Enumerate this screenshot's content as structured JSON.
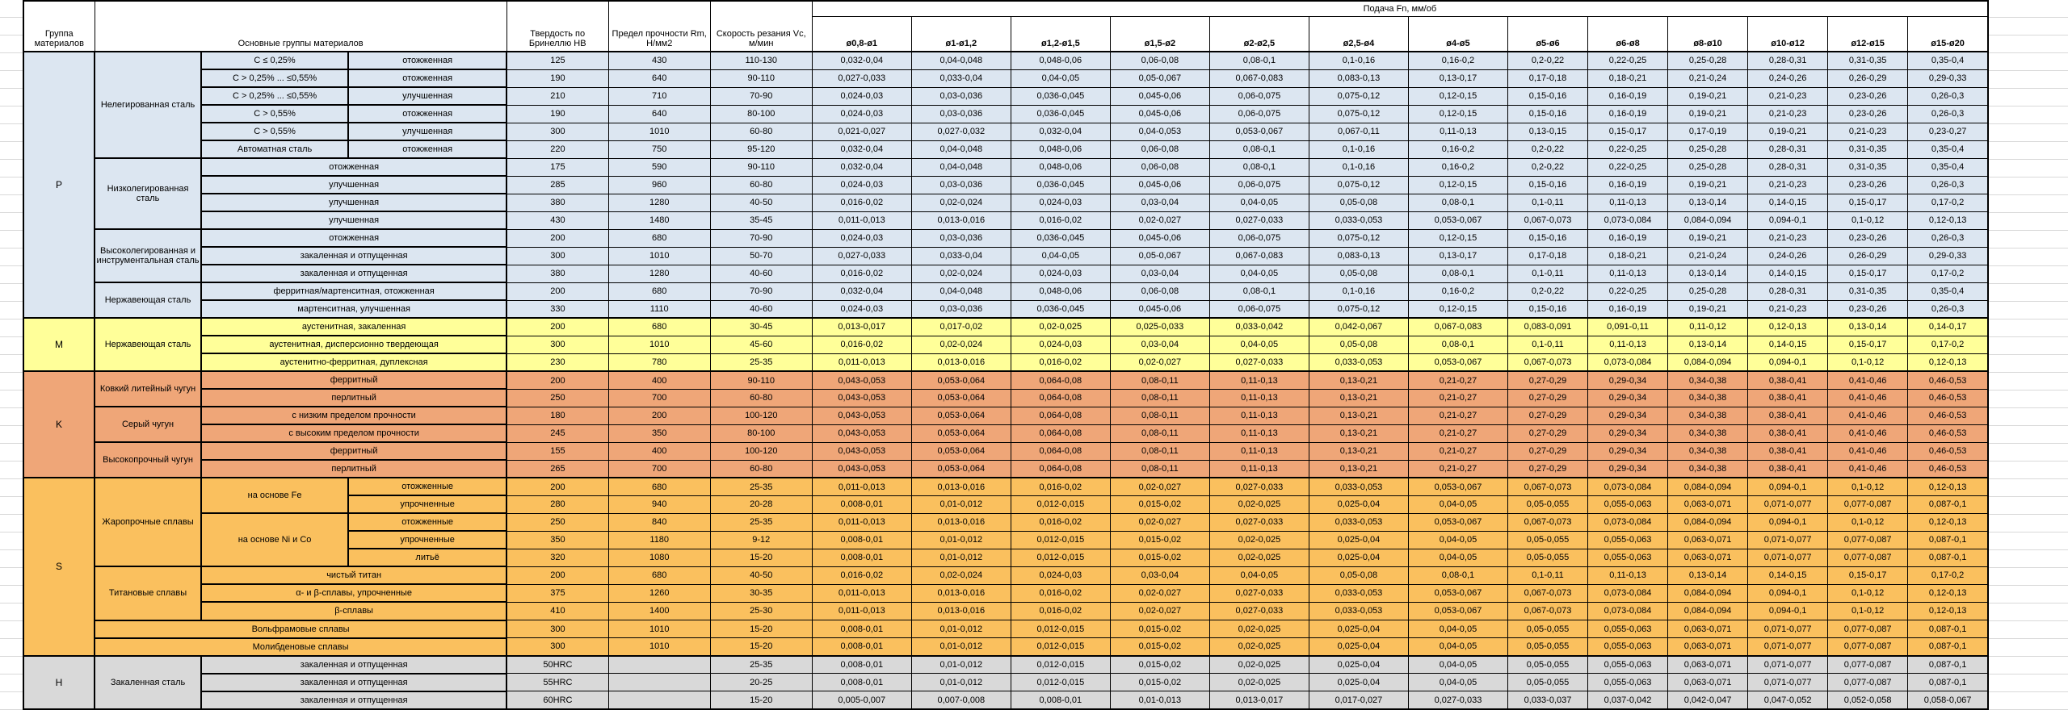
{
  "header": {
    "group": "Группа материалов",
    "main_groups": "Основные группы материалов",
    "hardness": "Твердость по Бринеллю HB",
    "strength": "Предел прочности Rm, Н/мм2",
    "speed": "Скорость резания Vc, м/мин",
    "feed": "Подача Fn, мм/об",
    "feed_sizes": [
      "ø0,8-ø1",
      "ø1-ø1,2",
      "ø1,2-ø1,5",
      "ø1,5-ø2",
      "ø2-ø2,5",
      "ø2,5-ø4",
      "ø4-ø5",
      "ø5-ø6",
      "ø6-ø8",
      "ø8-ø10",
      "ø10-ø12",
      "ø12-ø15",
      "ø15-ø20"
    ]
  },
  "feed_patterns": {
    "A": [
      "0,032-0,04",
      "0,04-0,048",
      "0,048-0,06",
      "0,06-0,08",
      "0,08-0,1",
      "0,1-0,16",
      "0,16-0,2",
      "0,2-0,22",
      "0,22-0,25",
      "0,25-0,28",
      "0,28-0,31",
      "0,31-0,35",
      "0,35-0,4"
    ],
    "B": [
      "0,027-0,033",
      "0,033-0,04",
      "0,04-0,05",
      "0,05-0,067",
      "0,067-0,083",
      "0,083-0,13",
      "0,13-0,17",
      "0,17-0,18",
      "0,18-0,21",
      "0,21-0,24",
      "0,24-0,26",
      "0,26-0,29",
      "0,29-0,33"
    ],
    "C": [
      "0,024-0,03",
      "0,03-0,036",
      "0,036-0,045",
      "0,045-0,06",
      "0,06-0,075",
      "0,075-0,12",
      "0,12-0,15",
      "0,15-0,16",
      "0,16-0,19",
      "0,19-0,21",
      "0,21-0,23",
      "0,23-0,26",
      "0,26-0,3"
    ],
    "D": [
      "0,021-0,027",
      "0,027-0,032",
      "0,032-0,04",
      "0,04-0,053",
      "0,053-0,067",
      "0,067-0,11",
      "0,11-0,13",
      "0,13-0,15",
      "0,15-0,17",
      "0,17-0,19",
      "0,19-0,21",
      "0,21-0,23",
      "0,23-0,27"
    ],
    "E": [
      "0,016-0,02",
      "0,02-0,024",
      "0,024-0,03",
      "0,03-0,04",
      "0,04-0,05",
      "0,05-0,08",
      "0,08-0,1",
      "0,1-0,11",
      "0,11-0,13",
      "0,13-0,14",
      "0,14-0,15",
      "0,15-0,17",
      "0,17-0,2"
    ],
    "F": [
      "0,011-0,013",
      "0,013-0,016",
      "0,016-0,02",
      "0,02-0,027",
      "0,027-0,033",
      "0,033-0,053",
      "0,053-0,067",
      "0,067-0,073",
      "0,073-0,084",
      "0,084-0,094",
      "0,094-0,1",
      "0,1-0,12",
      "0,12-0,13"
    ],
    "G": [
      "0,008-0,01",
      "0,01-0,012",
      "0,012-0,015",
      "0,015-0,02",
      "0,02-0,025",
      "0,025-0,04",
      "0,04-0,05",
      "0,05-0,055",
      "0,055-0,063",
      "0,063-0,071",
      "0,071-0,077",
      "0,077-0,087",
      "0,087-0,1"
    ],
    "M1": [
      "0,013-0,017",
      "0,017-0,02",
      "0,02-0,025",
      "0,025-0,033",
      "0,033-0,042",
      "0,042-0,067",
      "0,067-0,083",
      "0,083-0,091",
      "0,091-0,11",
      "0,11-0,12",
      "0,12-0,13",
      "0,13-0,14",
      "0,14-0,17"
    ],
    "K1": [
      "0,043-0,053",
      "0,053-0,064",
      "0,064-0,08",
      "0,08-0,11",
      "0,11-0,13",
      "0,13-0,21",
      "0,21-0,27",
      "0,27-0,29",
      "0,29-0,34",
      "0,34-0,38",
      "0,38-0,41",
      "0,41-0,46",
      "0,46-0,53"
    ],
    "H60": [
      "0,005-0,007",
      "0,007-0,008",
      "0,008-0,01",
      "0,01-0,013",
      "0,013-0,017",
      "0,017-0,027",
      "0,027-0,033",
      "0,033-0,037",
      "0,037-0,042",
      "0,042-0,047",
      "0,047-0,052",
      "0,052-0,058",
      "0,058-0,067"
    ]
  },
  "sections": [
    {
      "code": "P",
      "color": "#dce6f1",
      "rows": [
        {
          "labels": [
            {
              "t": "Нелегированная сталь",
              "rs": 6
            },
            {
              "t": "C ≤ 0,25%"
            },
            {
              "t": "отожженная"
            }
          ],
          "hb": "125",
          "rm": "430",
          "vc": "110-130",
          "feeds": "A"
        },
        {
          "labels": [
            {
              "t": "C > 0,25% ... ≤0,55%"
            },
            {
              "t": "отожженная"
            }
          ],
          "hb": "190",
          "rm": "640",
          "vc": "90-110",
          "feeds": "B"
        },
        {
          "labels": [
            {
              "t": "C > 0,25% ... ≤0,55%"
            },
            {
              "t": "улучшенная"
            }
          ],
          "hb": "210",
          "rm": "710",
          "vc": "70-90",
          "feeds": "C"
        },
        {
          "labels": [
            {
              "t": "C > 0,55%"
            },
            {
              "t": "отожженная"
            }
          ],
          "hb": "190",
          "rm": "640",
          "vc": "80-100",
          "feeds": "C"
        },
        {
          "labels": [
            {
              "t": "C > 0,55%"
            },
            {
              "t": "улучшенная"
            }
          ],
          "hb": "300",
          "rm": "1010",
          "vc": "60-80",
          "feeds": "D"
        },
        {
          "labels": [
            {
              "t": "Автоматная сталь"
            },
            {
              "t": "отожженная"
            }
          ],
          "hb": "220",
          "rm": "750",
          "vc": "95-120",
          "feeds": "A"
        },
        {
          "labels": [
            {
              "t": "Низколегированная сталь",
              "rs": 4
            },
            {
              "t": "отожженная",
              "cs": 2
            }
          ],
          "hb": "175",
          "rm": "590",
          "vc": "90-110",
          "feeds": "A"
        },
        {
          "labels": [
            {
              "t": "улучшенная",
              "cs": 2
            }
          ],
          "hb": "285",
          "rm": "960",
          "vc": "60-80",
          "feeds": "C"
        },
        {
          "labels": [
            {
              "t": "улучшенная",
              "cs": 2
            }
          ],
          "hb": "380",
          "rm": "1280",
          "vc": "40-50",
          "feeds": "E"
        },
        {
          "labels": [
            {
              "t": "улучшенная",
              "cs": 2
            }
          ],
          "hb": "430",
          "rm": "1480",
          "vc": "35-45",
          "feeds": "F"
        },
        {
          "labels": [
            {
              "t": "Высоколегированная и инструментальная сталь",
              "rs": 3
            },
            {
              "t": "отожженная",
              "cs": 2
            }
          ],
          "hb": "200",
          "rm": "680",
          "vc": "70-90",
          "feeds": "C"
        },
        {
          "labels": [
            {
              "t": "закаленная и отпущенная",
              "cs": 2
            }
          ],
          "hb": "300",
          "rm": "1010",
          "vc": "50-70",
          "feeds": "B"
        },
        {
          "labels": [
            {
              "t": "закаленная и отпущенная",
              "cs": 2
            }
          ],
          "hb": "380",
          "rm": "1280",
          "vc": "40-60",
          "feeds": "E"
        },
        {
          "labels": [
            {
              "t": "Нержавеющая сталь",
              "rs": 2
            },
            {
              "t": "ферритная/мартенситная, отожженная",
              "cs": 2
            }
          ],
          "hb": "200",
          "rm": "680",
          "vc": "70-90",
          "feeds": "A"
        },
        {
          "labels": [
            {
              "t": "мартенситная, улучшенная",
              "cs": 2
            }
          ],
          "hb": "330",
          "rm": "1110",
          "vc": "40-60",
          "feeds": "C"
        }
      ]
    },
    {
      "code": "M",
      "color": "#ffff99",
      "rows": [
        {
          "labels": [
            {
              "t": "Нержавеющая сталь",
              "rs": 3
            },
            {
              "t": "аустенитная, закаленная",
              "cs": 2
            }
          ],
          "hb": "200",
          "rm": "680",
          "vc": "30-45",
          "feeds": "M1"
        },
        {
          "labels": [
            {
              "t": "аустенитная, дисперсионно твердеющая",
              "cs": 2
            }
          ],
          "hb": "300",
          "rm": "1010",
          "vc": "45-60",
          "feeds": "E"
        },
        {
          "labels": [
            {
              "t": "аустенитно-ферритная, дуплексная",
              "cs": 2
            }
          ],
          "hb": "230",
          "rm": "780",
          "vc": "25-35",
          "feeds": "F"
        }
      ]
    },
    {
      "code": "K",
      "color": "#efa678",
      "rows": [
        {
          "labels": [
            {
              "t": "Ковкий литейный чугун",
              "rs": 2
            },
            {
              "t": "ферритный",
              "cs": 2
            }
          ],
          "hb": "200",
          "rm": "400",
          "vc": "90-110",
          "feeds": "K1"
        },
        {
          "labels": [
            {
              "t": "перлитный",
              "cs": 2
            }
          ],
          "hb": "250",
          "rm": "700",
          "vc": "60-80",
          "feeds": "K1"
        },
        {
          "labels": [
            {
              "t": "Серый чугун",
              "rs": 2
            },
            {
              "t": "с низким пределом прочности",
              "cs": 2
            }
          ],
          "hb": "180",
          "rm": "200",
          "vc": "100-120",
          "feeds": "K1"
        },
        {
          "labels": [
            {
              "t": "с высоким пределом прочности",
              "cs": 2
            }
          ],
          "hb": "245",
          "rm": "350",
          "vc": "80-100",
          "feeds": "K1"
        },
        {
          "labels": [
            {
              "t": "Высокопрочный чугун",
              "rs": 2
            },
            {
              "t": "ферритный",
              "cs": 2
            }
          ],
          "hb": "155",
          "rm": "400",
          "vc": "100-120",
          "feeds": "K1"
        },
        {
          "labels": [
            {
              "t": "перлитный",
              "cs": 2
            }
          ],
          "hb": "265",
          "rm": "700",
          "vc": "60-80",
          "feeds": "K1"
        }
      ]
    },
    {
      "code": "S",
      "color": "#fac05e",
      "rows": [
        {
          "labels": [
            {
              "t": "Жаропрочные сплавы",
              "rs": 5
            },
            {
              "t": "на основе Fe",
              "rs": 2
            },
            {
              "t": "отожженные"
            }
          ],
          "hb": "200",
          "rm": "680",
          "vc": "25-35",
          "feeds": "F"
        },
        {
          "labels": [
            {
              "t": "упрочненные"
            }
          ],
          "hb": "280",
          "rm": "940",
          "vc": "20-28",
          "feeds": "G"
        },
        {
          "labels": [
            {
              "t": "на основе Ni и Co",
              "rs": 3
            },
            {
              "t": "отожженные"
            }
          ],
          "hb": "250",
          "rm": "840",
          "vc": "25-35",
          "feeds": "F"
        },
        {
          "labels": [
            {
              "t": "упрочненные"
            }
          ],
          "hb": "350",
          "rm": "1180",
          "vc": "9-12",
          "feeds": "G"
        },
        {
          "labels": [
            {
              "t": "литьё"
            }
          ],
          "hb": "320",
          "rm": "1080",
          "vc": "15-20",
          "feeds": "G"
        },
        {
          "labels": [
            {
              "t": "Титановые сплавы",
              "rs": 3
            },
            {
              "t": "чистый титан",
              "cs": 2
            }
          ],
          "hb": "200",
          "rm": "680",
          "vc": "40-50",
          "feeds": "E"
        },
        {
          "labels": [
            {
              "t": "α- и β-сплавы, упрочненные",
              "cs": 2
            }
          ],
          "hb": "375",
          "rm": "1260",
          "vc": "30-35",
          "feeds": "F"
        },
        {
          "labels": [
            {
              "t": "β-сплавы",
              "cs": 2
            }
          ],
          "hb": "410",
          "rm": "1400",
          "vc": "25-30",
          "feeds": "F"
        },
        {
          "labels": [
            {
              "t": "Вольфрамовые сплавы",
              "cs": 3
            }
          ],
          "hb": "300",
          "rm": "1010",
          "vc": "15-20",
          "feeds": "G"
        },
        {
          "labels": [
            {
              "t": "Молибденовые сплавы",
              "cs": 3
            }
          ],
          "hb": "300",
          "rm": "1010",
          "vc": "15-20",
          "feeds": "G"
        }
      ]
    },
    {
      "code": "H",
      "color": "#d9d9d9",
      "rows": [
        {
          "labels": [
            {
              "t": "Закаленная сталь",
              "rs": 3
            },
            {
              "t": "закаленная и отпущенная",
              "cs": 2
            }
          ],
          "hb": "50HRC",
          "rm": "",
          "vc": "25-35",
          "feeds": "G"
        },
        {
          "labels": [
            {
              "t": "закаленная и отпущенная",
              "cs": 2
            }
          ],
          "hb": "55HRC",
          "rm": "",
          "vc": "20-25",
          "feeds": "G"
        },
        {
          "labels": [
            {
              "t": "закаленная и отпущенная",
              "cs": 2
            }
          ],
          "hb": "60HRC",
          "rm": "",
          "vc": "15-20",
          "feeds": "H60"
        }
      ]
    }
  ]
}
